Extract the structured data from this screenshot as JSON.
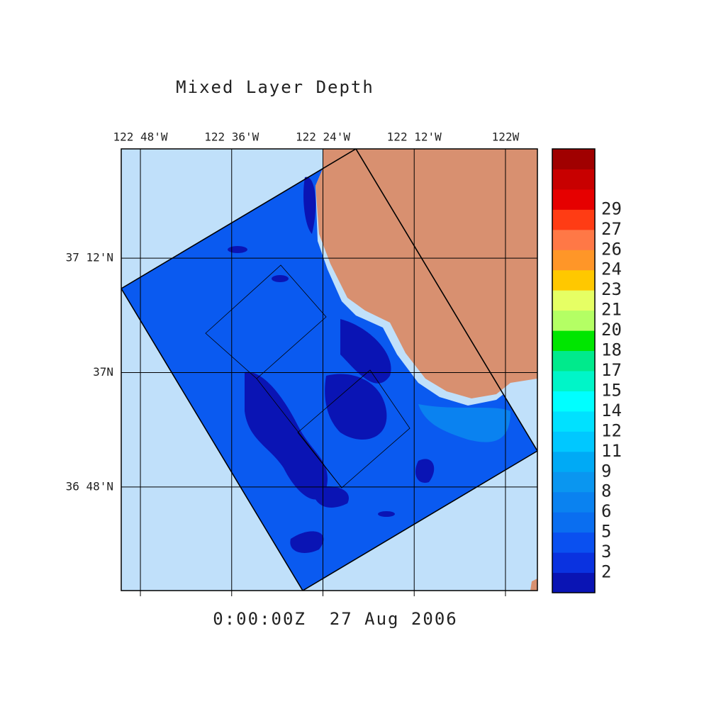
{
  "title": "Mixed Layer Depth",
  "timestamp": "0:00:00Z  27 Aug 2006",
  "map": {
    "xlim": [
      -122.842,
      -121.93
    ],
    "ylim": [
      36.619,
      37.391
    ],
    "lon_ticks": [
      {
        "value": -122.8,
        "label": "122 48'W"
      },
      {
        "value": -122.6,
        "label": "122 36'W"
      },
      {
        "value": -122.4,
        "label": "122 24'W"
      },
      {
        "value": -122.2,
        "label": "122 12'W"
      },
      {
        "value": -122.0,
        "label": "122W"
      }
    ],
    "lat_ticks": [
      {
        "value": 37.2,
        "label": "37 12'N"
      },
      {
        "value": 37.0,
        "label": "37N"
      },
      {
        "value": 36.8,
        "label": "36 48'N"
      }
    ]
  },
  "colorbar": {
    "labels": [
      2,
      3,
      5,
      6,
      8,
      9,
      11,
      12,
      14,
      15,
      17,
      18,
      20,
      21,
      23,
      24,
      26,
      27,
      29
    ],
    "colors": [
      "#0a14b4",
      "#0a32e0",
      "#0a50f0",
      "#0a6ef0",
      "#0a82f0",
      "#0a96f0",
      "#00aaf5",
      "#00c8ff",
      "#00e1ff",
      "#00ffff",
      "#00f5c8",
      "#00ea8c",
      "#00e600",
      "#b4ff64",
      "#e6ff64",
      "#ffc800",
      "#ff9628",
      "#ff7846",
      "#ff3c14",
      "#e60000",
      "#c80000",
      "#a00000"
    ]
  }
}
